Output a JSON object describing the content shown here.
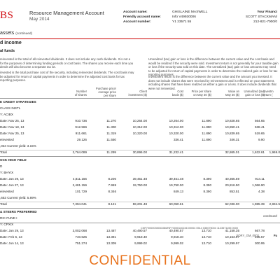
{
  "header": {
    "logo": "BS",
    "title": "Resource Management Account",
    "date": "May 2014"
  },
  "account": {
    "name_label": "Account name:",
    "name_value": "GHISLAINE MAXWELL",
    "friendly_label": "Friendly account name:",
    "friendly_value": "Info V49930006",
    "number_label": "Account number:",
    "number_value": "Y1  23571 55"
  },
  "advisor": {
    "title": "Your Financi",
    "name": "SCOTT STACKMAN/",
    "phone": "212-821-7000/0"
  },
  "sections": {
    "assets": "assets",
    "assets_cont": "(continued)",
    "fixed_income": "d income",
    "mutual_funds": "al funds"
  },
  "notes": {
    "left_1": "reinvested is the total of all reinvested dividends. It does not include any cash dividends. It is not a for the purposes of determining funding periods or cost basis. The shares you receive each time you dends will also become a separate tax lot.",
    "left_2": "invested is the total purchase cost of the security, including reinvested dividends. The cost basis may be adjusted for return of capital payments in order to determine the adjusted cost basis for tax reporting purposes.",
    "right_1": "Unrealized (tax) gain or loss is the difference between the current value and the cost basis and would be realized if the security were sold. Investment return is not generally for your taxable gain or loss if the security was sold on this date. The unrealized (tax) gain or loss amounts may need to be adjusted for return of capital payments in order to determine the realized gain or loss for tax reporting purposes.",
    "right_2": "Investment return is the difference between the current value and the amount you invested. It does not include shares that were received by reinvestment and is reflected on your statement, including shares that have been realized as either a gain or a loss. It does include dividends that were not reinvested."
  },
  "table": {
    "headers": {
      "shares": "Number\nof shares",
      "price": "Purchase price/\nAverage price\nper share",
      "client_inv": "Client\ninvestment ($)",
      "cost_basis": "Cost\nbasis ($)",
      "price_may": "Price per share\non May 30 ($)",
      "value": "Value on\nMay 30 ($)",
      "unrealized": "Unrealized (tax)\ngain or loss ($)",
      "inv_return": "Investm\nreturn ("
    },
    "groups": [
      {
        "heading": "E CREDIT STRATEGIES",
        "sub": "CLASS INSTL",
        "symbol": "Y: ACIBX",
        "rows": [
          {
            "label": "Date: Nov 25, 13",
            "shares": "910.736",
            "price": "11.270",
            "client": "10,264.00",
            "cost": "10,264.00",
            "pps": "11.890",
            "value": "10,828.65",
            "gl": "564.65",
            "ret": ""
          },
          {
            "label": "Date: Nov 18, 13",
            "shares": "912.566",
            "price": "11.300",
            "client": "10,312.00",
            "cost": "10,312.00",
            "pps": "11.890",
            "value": "10,850.41",
            "gl": "538.41",
            "ret": ""
          },
          {
            "label": "Date: Nov 25, 13",
            "shares": "911.661",
            "price": "11.319",
            "client": "10,320.00",
            "cost": "10,320.00",
            "pps": "11.890",
            "value": "10,839.65",
            "gl": "519.65",
            "ret": ""
          },
          {
            "label": "einvested",
            "shares": "29.126",
            "price": "11.550",
            "client": "",
            "cost": "336.41",
            "pps": "11.890",
            "value": "346.31",
            "gl": "9.90",
            "ret": ""
          }
        ],
        "yield_note": ",034  Current yield: 3.15%",
        "total": {
          "label": "Total",
          "shares": "2,764.089",
          "price": "11.299",
          "client": "30,896.00",
          "cost": "31,232.41",
          "pps": "",
          "value": "32,865.01",
          "gl": "1,632.61",
          "ret": "1,969.0"
        }
      },
      {
        "heading": "OCK HIGH YIELD",
        "sub": "D",
        "symbol": "Y: BHYIX",
        "rows": [
          {
            "label": "Date: Jan 29, 13",
            "shares": "4,811.156",
            "price": "8.200",
            "client": "39,451.48",
            "cost": "39,451.48",
            "pps": "8.390",
            "value": "40,365.59",
            "gl": "914.11",
            "ret": ""
          },
          {
            "label": "Date: Jun 27, 13",
            "shares": "2,481.156",
            "price": "7.959",
            "client": "19,750.00",
            "cost": "19,750.00",
            "pps": "8.390",
            "value": "20,816.90",
            "gl": "1,066.90",
            "ret": ""
          },
          {
            "label": "einvested",
            "shares": "101.729",
            "price": "8.346",
            "client": "",
            "cost": "849.13",
            "pps": "8.390",
            "value": "853.51",
            "gl": "4.38",
            "ret": ""
          }
        ],
        "yield_note": ",653  Current yield: 5.89%",
        "total": {
          "label": "Total",
          "shares": "7,394.041",
          "price": "8.121",
          "client": "59,201.48",
          "cost": "60,050.61",
          "pps": "",
          "value": "62,036.00",
          "gl": "1,985.39",
          "ret": "2,834.5"
        }
      },
      {
        "heading": "& STEERS PREFERRED",
        "sub": "RIC FUND I",
        "symbol": "Y: CPXIX",
        "rows": [
          {
            "label": "Date: Jan 29, 13",
            "shares": "3,002.068",
            "price": "13.487",
            "client": "40,490.57",
            "cost": "40,490.57",
            "pps": "13.710",
            "value": "41,158.35",
            "gl": "667.78",
            "ret": ""
          },
          {
            "label": "Date: Feb 6, 13",
            "shares": "740.625",
            "price": "13.391",
            "client": "9,918.40",
            "cost": "9,918.40",
            "pps": "13.710",
            "value": "10,153.97",
            "gl": "235.57",
            "ret": ""
          },
          {
            "label": "Date: Jun 14, 13",
            "shares": "751.274",
            "price": "13.309",
            "client": "9,999.02",
            "cost": "9,999.02",
            "pps": "13.710",
            "value": "10,299.97",
            "gl": "300.95",
            "ret": ""
          }
        ]
      }
    ]
  },
  "footer": {
    "continued": "continued",
    "barcode_text": "CNF70000035031086/NF70000140246 00004 0514 035075004 1123571155 0000",
    "page_code": "SORY_GM_0002",
    "page_tag": "Pa",
    "confidential": "CONFIDENTIAL"
  },
  "colors": {
    "brand_red": "#d10a11",
    "confidential_orange": "#e8731d"
  }
}
